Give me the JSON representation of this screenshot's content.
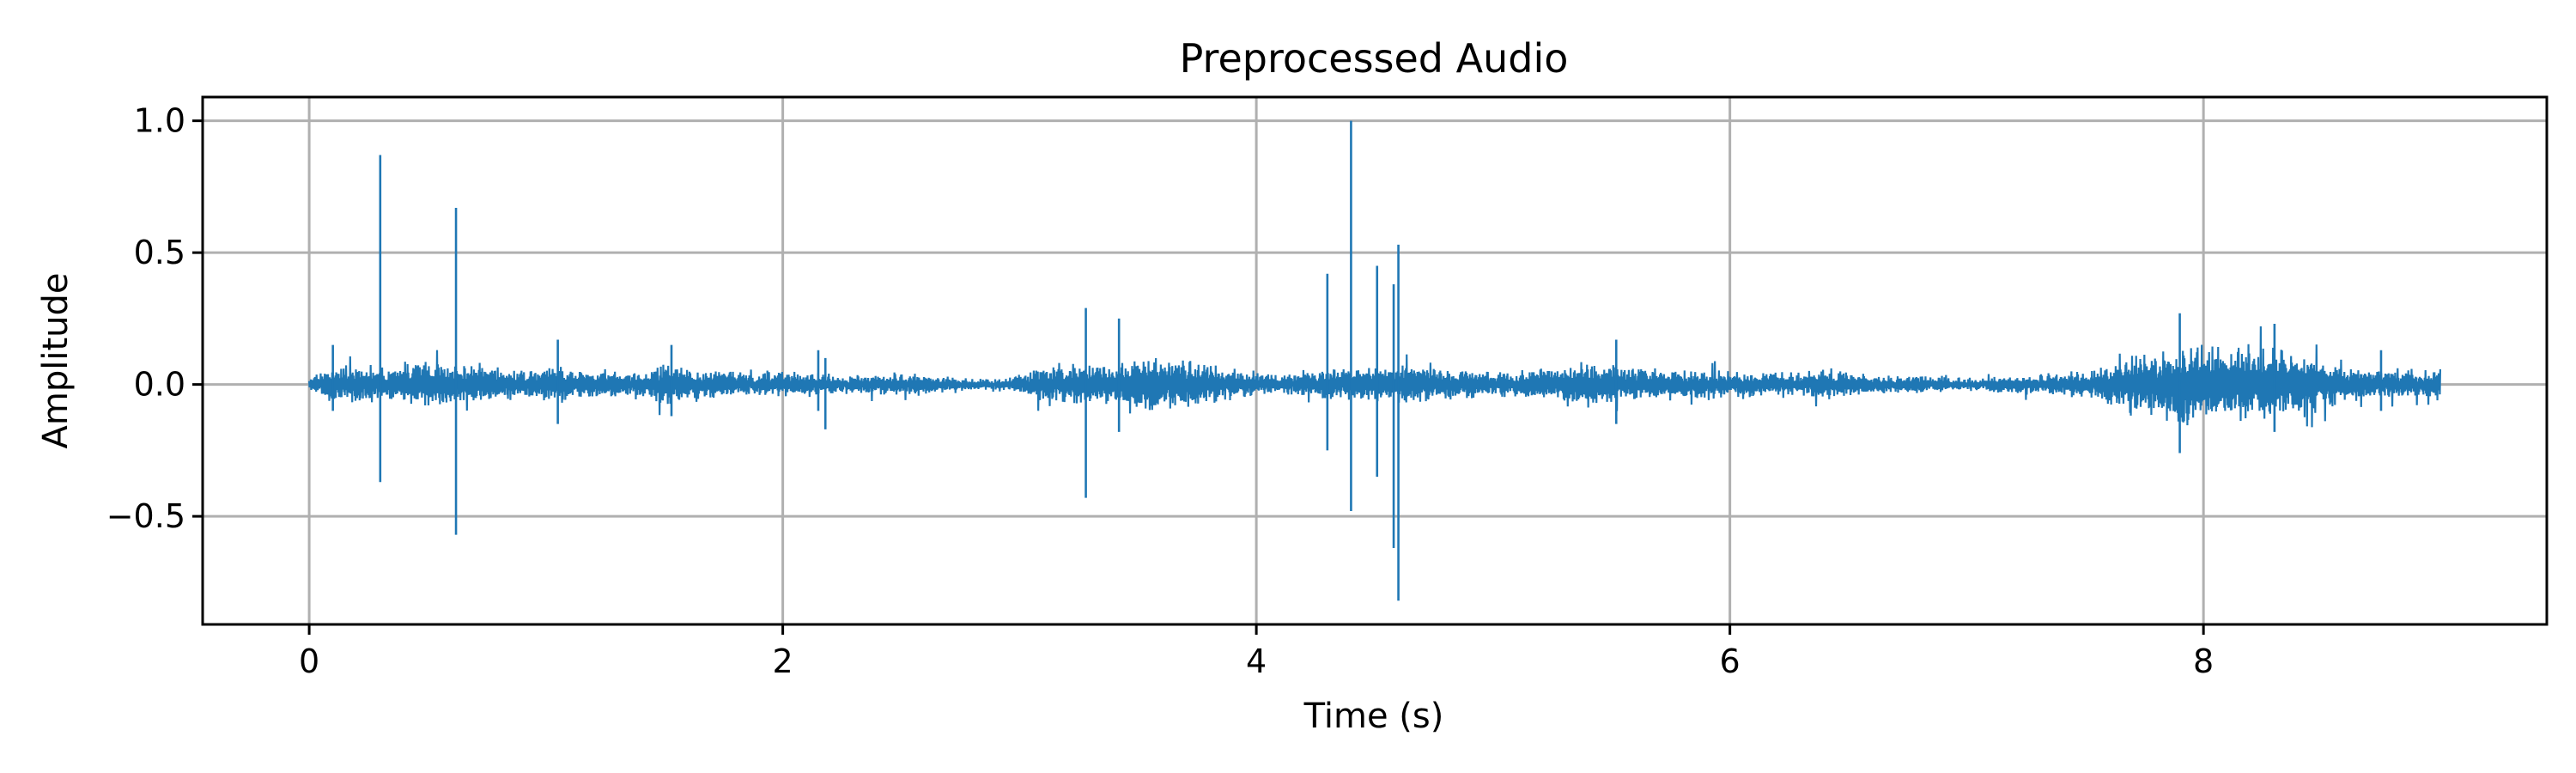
{
  "chart_data": {
    "type": "line",
    "title": "Preprocessed Audio",
    "xlabel": "Time (s)",
    "ylabel": "Amplitude",
    "xlim": [
      -0.45,
      9.45
    ],
    "ylim": [
      -0.91,
      1.09
    ],
    "xticks": [
      0,
      2,
      4,
      6,
      8
    ],
    "xtick_labels": [
      "0",
      "2",
      "4",
      "6",
      "8"
    ],
    "yticks": [
      -0.5,
      0.0,
      0.5,
      1.0
    ],
    "ytick_labels": [
      "−0.5",
      "0.0",
      "0.5",
      "1.0"
    ],
    "grid": true,
    "color": "#1f77b4",
    "series": [
      {
        "duration": 9.0,
        "envelope": {
          "t": [
            0.0,
            0.1,
            0.2,
            0.35,
            0.5,
            0.7,
            0.9,
            1.05,
            1.2,
            1.4,
            1.5,
            1.7,
            1.9,
            2.1,
            2.3,
            2.45,
            2.6,
            2.8,
            2.95,
            3.1,
            3.3,
            3.4,
            3.55,
            3.7,
            3.9,
            4.1,
            4.3,
            4.5,
            4.65,
            4.8,
            5.0,
            5.2,
            5.4,
            5.55,
            5.7,
            5.9,
            6.1,
            6.3,
            6.4,
            6.6,
            6.8,
            7.0,
            7.2,
            7.4,
            7.55,
            7.7,
            7.9,
            8.1,
            8.3,
            8.45,
            8.6,
            8.8,
            9.0
          ],
          "amp": [
            0.02,
            0.06,
            0.07,
            0.06,
            0.08,
            0.06,
            0.05,
            0.06,
            0.05,
            0.04,
            0.07,
            0.05,
            0.04,
            0.04,
            0.03,
            0.04,
            0.03,
            0.02,
            0.02,
            0.06,
            0.07,
            0.06,
            0.09,
            0.08,
            0.05,
            0.03,
            0.05,
            0.06,
            0.07,
            0.05,
            0.04,
            0.05,
            0.07,
            0.06,
            0.05,
            0.05,
            0.04,
            0.04,
            0.05,
            0.03,
            0.03,
            0.02,
            0.03,
            0.04,
            0.05,
            0.1,
            0.14,
            0.12,
            0.13,
            0.1,
            0.06,
            0.05,
            0.05
          ]
        },
        "spikes": [
          {
            "t": 0.1,
            "max": 0.15,
            "min": -0.1
          },
          {
            "t": 0.3,
            "max": 0.87,
            "min": -0.37
          },
          {
            "t": 0.62,
            "max": 0.67,
            "min": -0.57
          },
          {
            "t": 1.05,
            "max": 0.17,
            "min": -0.15
          },
          {
            "t": 1.53,
            "max": 0.15,
            "min": -0.12
          },
          {
            "t": 2.15,
            "max": 0.13,
            "min": -0.1
          },
          {
            "t": 2.18,
            "max": 0.1,
            "min": -0.17
          },
          {
            "t": 3.28,
            "max": 0.29,
            "min": -0.43
          },
          {
            "t": 3.42,
            "max": 0.25,
            "min": -0.18
          },
          {
            "t": 4.3,
            "max": 0.42,
            "min": -0.25
          },
          {
            "t": 4.4,
            "max": 1.0,
            "min": -0.48
          },
          {
            "t": 4.51,
            "max": 0.45,
            "min": -0.35
          },
          {
            "t": 4.58,
            "max": 0.38,
            "min": -0.62
          },
          {
            "t": 4.6,
            "max": 0.53,
            "min": -0.82
          },
          {
            "t": 5.52,
            "max": 0.17,
            "min": -0.15
          },
          {
            "t": 7.9,
            "max": 0.27,
            "min": -0.26
          },
          {
            "t": 8.3,
            "max": 0.23,
            "min": -0.18
          },
          {
            "t": 8.75,
            "max": 0.13,
            "min": -0.1
          }
        ]
      }
    ]
  }
}
